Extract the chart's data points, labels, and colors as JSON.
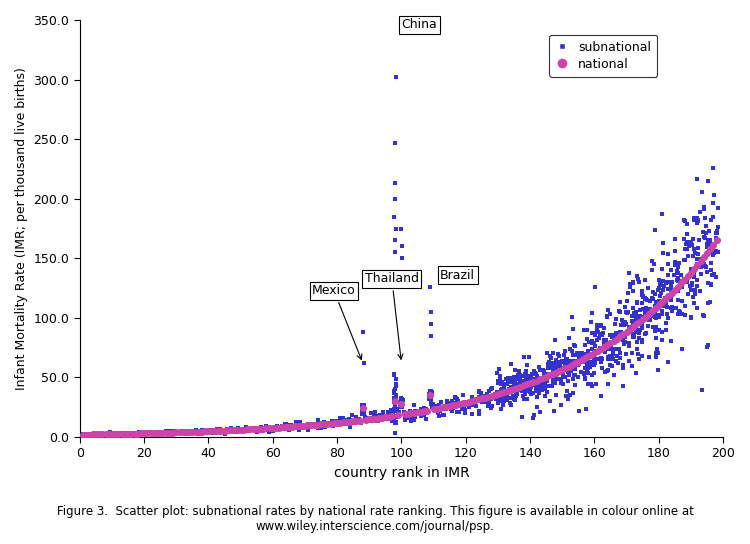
{
  "title": "",
  "xlabel": "country rank in IMR",
  "ylabel": "Infant Mortality Rate (IMR; per thousand live births)",
  "xlim": [
    0,
    200
  ],
  "ylim": [
    0,
    350
  ],
  "yticks": [
    0,
    50.0,
    100.0,
    150.0,
    200.0,
    250.0,
    300.0,
    350.0
  ],
  "xticks": [
    0,
    20,
    40,
    60,
    80,
    100,
    120,
    140,
    160,
    180,
    200
  ],
  "national_color": "#cc44aa",
  "subnational_color": "#3333cc",
  "figure_caption": "Figure 3.  Scatter plot: subnational rates by national rate ranking. This figure is available in colour online at\nwww.wiley.interscience.com/journal/psp.",
  "seed": 42,
  "n_countries": 198,
  "china_rank": 98,
  "mexico_rank": 88,
  "thailand_rank": 100,
  "brazil_rank": 109
}
